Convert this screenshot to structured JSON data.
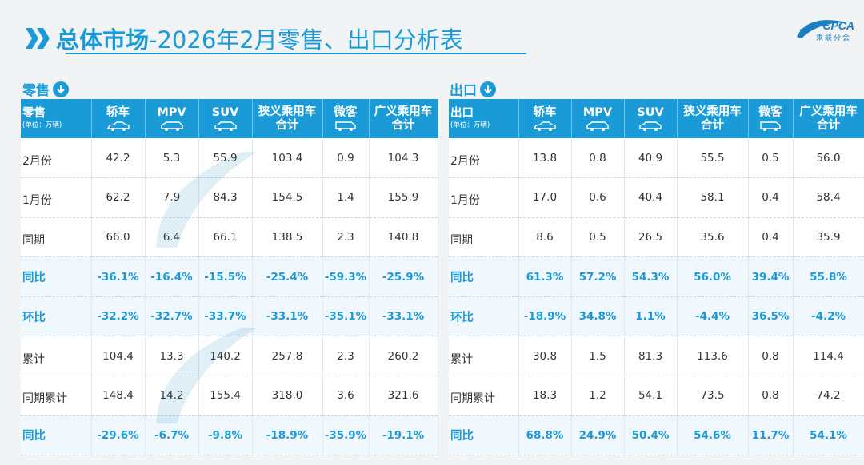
{
  "header": {
    "title_main": "总体市场",
    "title_sub": "-2026年2月零售、出口分析表"
  },
  "logo": {
    "text": "CPCA",
    "sub": "乘联分会"
  },
  "colors": {
    "accent": "#1a9ad6",
    "header_bg": "#1a9ad6",
    "highlight_row_bg": "#f0f8fd"
  },
  "retail": {
    "section_label": "零售",
    "section_icon": "arrow-down-circle-icon",
    "corner_label": "零售",
    "unit": "(单位：万辆)",
    "columns": [
      "轿车",
      "MPV",
      "SUV",
      "狭义乘用车合计",
      "微客",
      "广义乘用车合计"
    ],
    "rows": [
      {
        "label": "2月份",
        "highlight": false,
        "values": [
          "42.2",
          "5.3",
          "55.9",
          "103.4",
          "0.9",
          "104.3"
        ]
      },
      {
        "label": "1月份",
        "highlight": false,
        "values": [
          "62.2",
          "7.9",
          "84.3",
          "154.5",
          "1.4",
          "155.9"
        ]
      },
      {
        "label": "同期",
        "highlight": false,
        "values": [
          "66.0",
          "6.4",
          "66.1",
          "138.5",
          "2.3",
          "140.8"
        ]
      },
      {
        "label": "同比",
        "highlight": true,
        "values": [
          "-36.1%",
          "-16.4%",
          "-15.5%",
          "-25.4%",
          "-59.3%",
          "-25.9%"
        ]
      },
      {
        "label": "环比",
        "highlight": true,
        "values": [
          "-32.2%",
          "-32.7%",
          "-33.7%",
          "-33.1%",
          "-35.1%",
          "-33.1%"
        ]
      },
      {
        "label": "累计",
        "highlight": false,
        "values": [
          "104.4",
          "13.3",
          "140.2",
          "257.8",
          "2.3",
          "260.2"
        ]
      },
      {
        "label": "同期累计",
        "highlight": false,
        "values": [
          "148.4",
          "14.2",
          "155.4",
          "318.0",
          "3.6",
          "321.6"
        ]
      },
      {
        "label": "同比",
        "highlight": true,
        "values": [
          "-29.6%",
          "-6.7%",
          "-9.8%",
          "-18.9%",
          "-35.9%",
          "-19.1%"
        ]
      }
    ]
  },
  "export": {
    "section_label": "出口",
    "section_icon": "arrow-down-circle-icon",
    "corner_label": "出口",
    "unit": "(单位：万辆)",
    "columns": [
      "轿车",
      "MPV",
      "SUV",
      "狭义乘用车合计",
      "微客",
      "广义乘用车合计"
    ],
    "rows": [
      {
        "label": "2月份",
        "highlight": false,
        "values": [
          "13.8",
          "0.8",
          "40.9",
          "55.5",
          "0.5",
          "56.0"
        ]
      },
      {
        "label": "1月份",
        "highlight": false,
        "values": [
          "17.0",
          "0.6",
          "40.4",
          "58.1",
          "0.4",
          "58.4"
        ]
      },
      {
        "label": "同期",
        "highlight": false,
        "values": [
          "8.6",
          "0.5",
          "26.5",
          "35.6",
          "0.4",
          "35.9"
        ]
      },
      {
        "label": "同比",
        "highlight": true,
        "values": [
          "61.3%",
          "57.2%",
          "54.3%",
          "56.0%",
          "39.4%",
          "55.8%"
        ]
      },
      {
        "label": "环比",
        "highlight": true,
        "values": [
          "-18.9%",
          "34.8%",
          "1.1%",
          "-4.4%",
          "36.5%",
          "-4.2%"
        ]
      },
      {
        "label": "累计",
        "highlight": false,
        "values": [
          "30.8",
          "1.5",
          "81.3",
          "113.6",
          "0.8",
          "114.4"
        ]
      },
      {
        "label": "同期累计",
        "highlight": false,
        "values": [
          "18.3",
          "1.2",
          "54.1",
          "73.5",
          "0.8",
          "74.2"
        ]
      },
      {
        "label": "同比",
        "highlight": true,
        "values": [
          "68.8%",
          "24.9%",
          "50.4%",
          "54.6%",
          "11.7%",
          "54.1%"
        ]
      }
    ]
  }
}
